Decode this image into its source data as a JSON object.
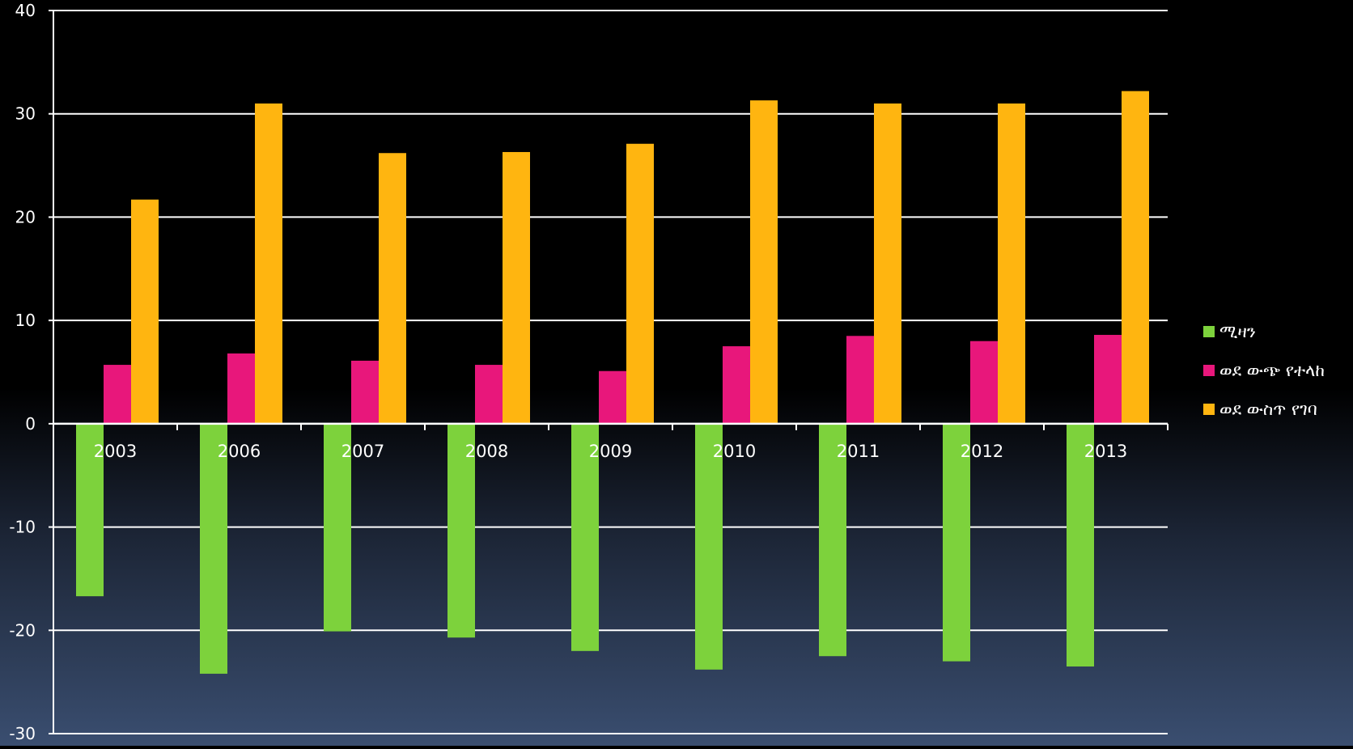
{
  "chart_data": {
    "type": "bar",
    "categories": [
      "2003",
      "2006",
      "2007",
      "2008",
      "2009",
      "2010",
      "2011",
      "2012",
      "2013"
    ],
    "series": [
      {
        "name": "ሚዛን",
        "color": "#7dd23c",
        "values": [
          -16.7,
          -24.2,
          -20.1,
          -20.7,
          -22.0,
          -23.8,
          -22.5,
          -23.0,
          -23.5
        ]
      },
      {
        "name": "ወደ ውጭ የተላከ",
        "color": "#e8177b",
        "values": [
          5.7,
          6.8,
          6.1,
          5.7,
          5.1,
          7.5,
          8.5,
          8.0,
          8.6
        ]
      },
      {
        "name": "ወደ ውስጥ የገባ",
        "color": "#ffb510",
        "values": [
          21.7,
          31.0,
          26.2,
          26.3,
          27.1,
          31.3,
          31.0,
          31.0,
          32.2
        ]
      }
    ],
    "ylim": [
      -30,
      40
    ],
    "yticks": [
      -30,
      -20,
      -10,
      0,
      10,
      20,
      30,
      40
    ],
    "ytick_labels": [
      "-30",
      "-20",
      "-10",
      "0",
      "10",
      "20",
      "30",
      "40"
    ],
    "grid": true,
    "legend_position": "right",
    "title": "",
    "xlabel": "",
    "ylabel": "",
    "colors": {
      "background_top": "#000000",
      "background_bottom": "#3a4e70",
      "axis": "#ffffff",
      "text": "#ffffff"
    }
  }
}
